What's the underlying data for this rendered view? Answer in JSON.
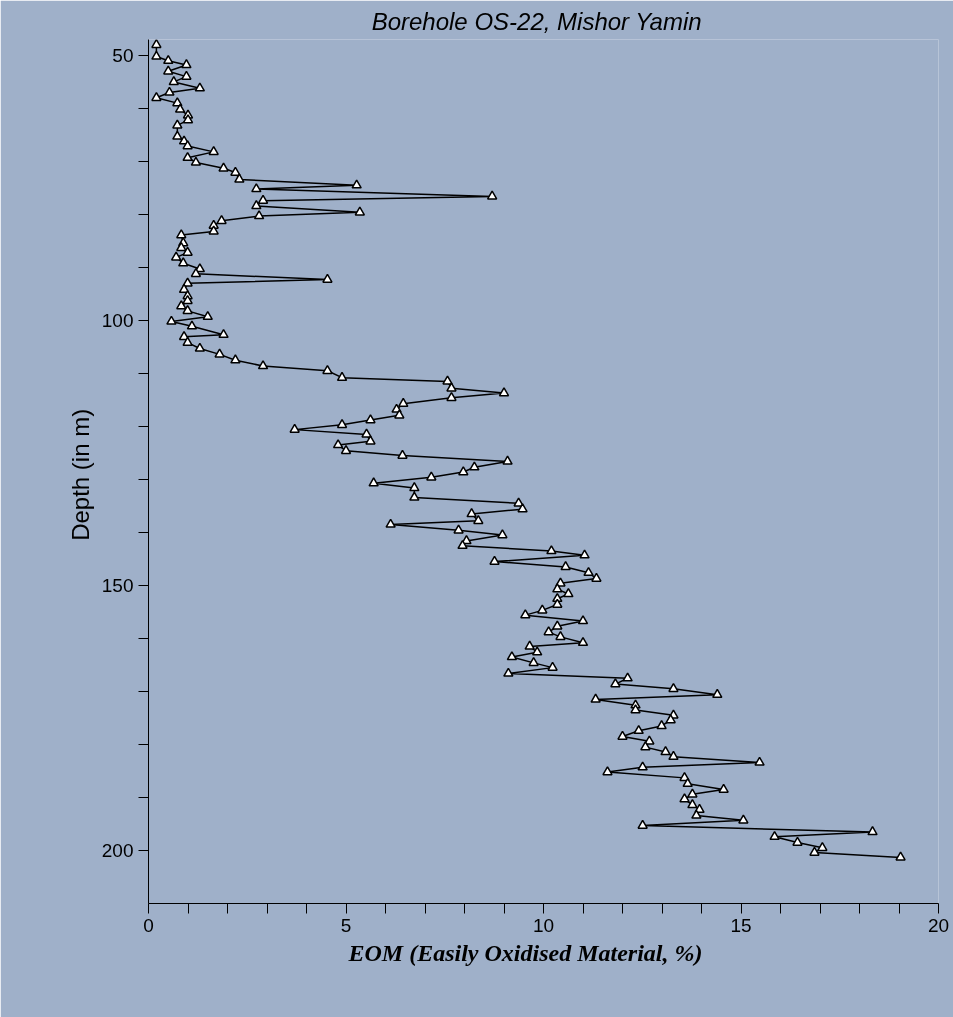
{
  "chart_data": {
    "type": "line",
    "title": "Borehole  OS-22,  Mishor Yamin",
    "xlabel": "EOM    (Easily  Oxidised  Material,  %)",
    "ylabel": "Depth  (in m)",
    "series": [
      {
        "color": "#000000",
        "x": [
          0.2,
          0.2,
          0.5,
          0.96,
          0.5,
          0.96,
          0.64,
          1.3,
          0.53,
          0.2,
          0.73,
          0.8,
          1.0,
          1.0,
          0.73,
          0.73,
          0.9,
          0.99,
          1.65,
          0.99,
          1.2,
          1.9,
          2.2,
          2.3,
          5.27,
          2.73,
          8.7,
          2.9,
          2.73,
          5.35,
          2.8,
          1.85,
          1.65,
          1.65,
          0.83,
          0.88,
          0.83,
          0.99,
          0.7,
          0.88,
          1.3,
          1.2,
          4.53,
          0.99,
          0.9,
          0.99,
          0.99,
          0.83,
          0.99,
          1.5,
          0.58,
          1.1,
          1.9,
          0.9,
          0.99,
          1.3,
          1.8,
          2.2,
          2.9,
          4.53,
          4.9,
          7.57,
          7.67,
          9.0,
          7.67,
          6.45,
          6.28,
          6.35,
          5.62,
          4.9,
          3.7,
          5.52,
          5.62,
          4.8,
          5.0,
          6.43,
          9.09,
          8.25,
          7.97,
          7.16,
          5.7,
          6.73,
          6.73,
          9.37,
          9.47,
          8.18,
          8.35,
          6.13,
          7.85,
          8.96,
          8.05,
          7.95,
          10.2,
          11.04,
          8.76,
          10.56,
          11.14,
          11.34,
          10.43,
          10.35,
          10.63,
          10.35,
          10.35,
          9.97,
          9.54,
          11.0,
          10.35,
          10.13,
          10.43,
          11.0,
          9.65,
          9.84,
          9.2,
          9.75,
          10.23,
          9.11,
          12.13,
          11.82,
          13.29,
          14.4,
          11.32,
          12.33,
          12.33,
          13.29,
          13.22,
          12.99,
          12.41,
          12.0,
          12.68,
          12.58,
          13.09,
          13.29,
          15.47,
          12.51,
          11.62,
          13.57,
          13.65,
          14.56,
          13.77,
          13.57,
          13.77,
          13.95,
          13.87,
          15.06,
          12.51,
          18.33,
          15.85,
          16.43,
          17.06,
          16.86,
          19.04
        ],
        "values": [
          48,
          50.2,
          51,
          51.8,
          53,
          54,
          55,
          56.2,
          57,
          58,
          59,
          60.2,
          61.3,
          62.2,
          63.2,
          65.3,
          66.2,
          67.1,
          68.2,
          69.3,
          70.2,
          71.3,
          72.1,
          73.4,
          74.5,
          75.2,
          76.6,
          77.4,
          78.4,
          79.6,
          80.3,
          81.2,
          82.1,
          83.2,
          83.9,
          85.4,
          86.3,
          87.2,
          88.1,
          89.2,
          90.3,
          91.2,
          92.3,
          93,
          94.2,
          95.4,
          96.3,
          97.3,
          98.2,
          99.3,
          100.2,
          101.1,
          102.7,
          103.1,
          104.2,
          105.3,
          106.4,
          107.5,
          108.6,
          109.5,
          110.8,
          111.5,
          112.8,
          113.7,
          114.6,
          115.7,
          116.8,
          117.9,
          118.8,
          119.7,
          120.6,
          121.5,
          122.8,
          123.5,
          124.6,
          125.5,
          126.6,
          127.7,
          128.6,
          129.6,
          130.7,
          131.6,
          133.4,
          134.5,
          135.6,
          136.5,
          137.8,
          138.5,
          139.6,
          140.5,
          141.6,
          142.5,
          143.5,
          144.3,
          145.5,
          146.5,
          147.6,
          148.7,
          149.6,
          150.7,
          151.6,
          152.5,
          153.6,
          154.7,
          155.6,
          156.7,
          157.7,
          158.8,
          159.7,
          160.8,
          161.5,
          162.6,
          163.5,
          164.6,
          165.5,
          166.6,
          167.5,
          168.6,
          169.5,
          170.6,
          171.5,
          172.6,
          173.5,
          174.5,
          175.4,
          176.5,
          177.4,
          178.5,
          179.4,
          180.5,
          181.4,
          182.3,
          183.4,
          184.3,
          185.2,
          186.3,
          187.4,
          188.5,
          189.4,
          190.3,
          191.4,
          192.3,
          193.4,
          194.3,
          195.3,
          196.5,
          197.4,
          198.5,
          199.5,
          200.4,
          201.3
        ]
      }
    ],
    "marker": "triangle",
    "line_style": "solid",
    "xlim": [
      0,
      20
    ],
    "ylim": [
      210,
      47
    ],
    "xticks": [
      0,
      {
        "value": 1,
        "label": null
      },
      {
        "value": 2,
        "label": null
      },
      {
        "value": 3,
        "label": null
      },
      {
        "value": 4,
        "label": null
      },
      5,
      {
        "value": 6,
        "label": null
      },
      {
        "value": 7,
        "label": null
      },
      {
        "value": 8,
        "label": null
      },
      {
        "value": 9,
        "label": null
      },
      10,
      {
        "value": 11,
        "label": null
      },
      {
        "value": 12,
        "label": null
      },
      {
        "value": 13,
        "label": null
      },
      {
        "value": 14,
        "label": null
      },
      15,
      {
        "value": 16,
        "label": null
      },
      {
        "value": 17,
        "label": null
      },
      {
        "value": 18,
        "label": null
      },
      {
        "value": 19,
        "label": null
      },
      20
    ],
    "yticks": [
      50,
      {
        "value": 60,
        "label": null
      },
      {
        "value": 70,
        "label": null
      },
      {
        "value": 80,
        "label": null
      },
      {
        "value": 90,
        "label": null
      },
      100,
      {
        "value": 110,
        "label": null
      },
      {
        "value": 120,
        "label": null
      },
      {
        "value": 130,
        "label": null
      },
      {
        "value": 140,
        "label": null
      },
      150,
      {
        "value": 160,
        "label": null
      },
      {
        "value": 170,
        "label": null
      },
      {
        "value": 180,
        "label": null
      },
      {
        "value": 190,
        "label": null
      },
      200
    ]
  }
}
